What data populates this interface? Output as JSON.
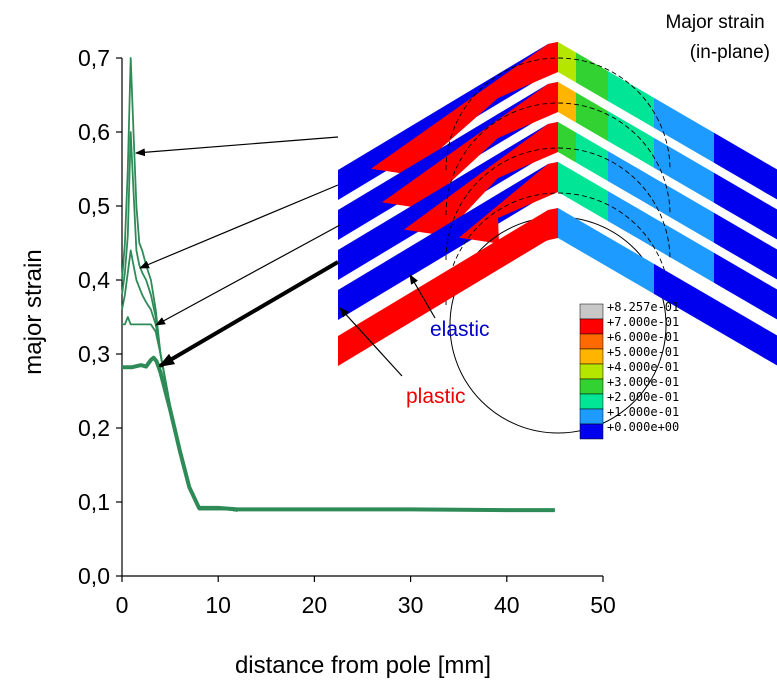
{
  "chart_data": {
    "type": "line",
    "xlabel": "distance from pole [mm]",
    "ylabel": "major strain",
    "xlim": [
      0,
      50
    ],
    "ylim": [
      0,
      0.7
    ],
    "xticks": [
      "0",
      "10",
      "20",
      "30",
      "40",
      "50"
    ],
    "yticks": [
      "0,0",
      "0,1",
      "0,2",
      "0,3",
      "0,4",
      "0,5",
      "0,6",
      "0,7"
    ],
    "grid": false,
    "line_color": "#2e8b57",
    "series": [
      {
        "x": [
          0.0,
          0.3,
          0.6,
          0.9,
          1.2,
          1.5,
          1.8,
          2.1,
          2.5,
          3.0,
          3.5,
          4.0,
          5.0,
          6.0,
          7.0,
          8.0,
          9.0,
          11.0,
          12.0
        ],
        "values": [
          0.4,
          0.45,
          0.55,
          0.7,
          0.6,
          0.5,
          0.45,
          0.44,
          0.42,
          0.4,
          0.36,
          0.3,
          0.23,
          0.17,
          0.12,
          0.09,
          0.09,
          0.09,
          0.088
        ]
      },
      {
        "x": [
          0.0,
          0.3,
          0.6,
          0.9,
          1.2,
          1.5,
          1.8,
          2.1,
          2.5,
          3.0,
          3.5,
          4.0,
          5.0,
          6.0,
          7.0,
          8.0,
          9.0,
          11.0,
          12.0
        ],
        "values": [
          0.38,
          0.41,
          0.46,
          0.6,
          0.52,
          0.44,
          0.42,
          0.41,
          0.4,
          0.38,
          0.35,
          0.3,
          0.23,
          0.17,
          0.12,
          0.09,
          0.09,
          0.09,
          0.088
        ]
      },
      {
        "x": [
          0.0,
          0.3,
          0.6,
          0.9,
          1.2,
          1.5,
          1.8,
          2.1,
          2.5,
          3.0,
          3.5,
          4.0,
          5.0,
          6.0,
          7.0,
          8.0,
          9.0,
          11.0,
          12.0
        ],
        "values": [
          0.36,
          0.38,
          0.41,
          0.44,
          0.42,
          0.4,
          0.39,
          0.38,
          0.37,
          0.36,
          0.34,
          0.3,
          0.23,
          0.17,
          0.12,
          0.09,
          0.09,
          0.09,
          0.088
        ]
      },
      {
        "x": [
          0.0,
          0.3,
          0.6,
          0.9,
          1.2,
          1.5,
          1.8,
          2.1,
          2.5,
          3.0,
          3.5,
          4.0,
          5.0,
          6.0,
          7.0,
          8.0,
          9.0,
          11.0,
          12.0
        ],
        "values": [
          0.34,
          0.34,
          0.35,
          0.34,
          0.34,
          0.34,
          0.34,
          0.34,
          0.34,
          0.34,
          0.33,
          0.3,
          0.23,
          0.17,
          0.12,
          0.09,
          0.09,
          0.09,
          0.088
        ]
      },
      {
        "x": [
          0.0,
          1.0,
          2.0,
          2.5,
          3.0,
          3.3,
          3.6,
          4.0,
          4.5,
          5.0,
          6.0,
          7.0,
          8.0,
          10.0,
          12.0,
          15.0,
          20.0,
          30.0,
          40.0,
          45.0
        ],
        "values": [
          0.282,
          0.282,
          0.285,
          0.283,
          0.292,
          0.295,
          0.29,
          0.275,
          0.25,
          0.225,
          0.17,
          0.12,
          0.092,
          0.092,
          0.09,
          0.09,
          0.09,
          0.09,
          0.089,
          0.089
        ]
      }
    ],
    "annotations": [
      "elastic",
      "plastic"
    ],
    "inset": {
      "title": "Major strain\n(in-plane)",
      "legend_entries": [
        {
          "label": "+8.257e-01",
          "color": "#c8c8c8"
        },
        {
          "label": "+7.000e-01",
          "color": "#ff0000"
        },
        {
          "label": "+6.000e-01",
          "color": "#ff6a00"
        },
        {
          "label": "+5.000e-01",
          "color": "#ffb400"
        },
        {
          "label": "+4.000e-01",
          "color": "#b4e600"
        },
        {
          "label": "+3.000e-01",
          "color": "#32d232"
        },
        {
          "label": "+2.000e-01",
          "color": "#00e696"
        },
        {
          "label": "+1.000e-01",
          "color": "#1e9bff"
        },
        {
          "label": "+0.000e+00",
          "color": "#0000ee"
        }
      ]
    }
  }
}
